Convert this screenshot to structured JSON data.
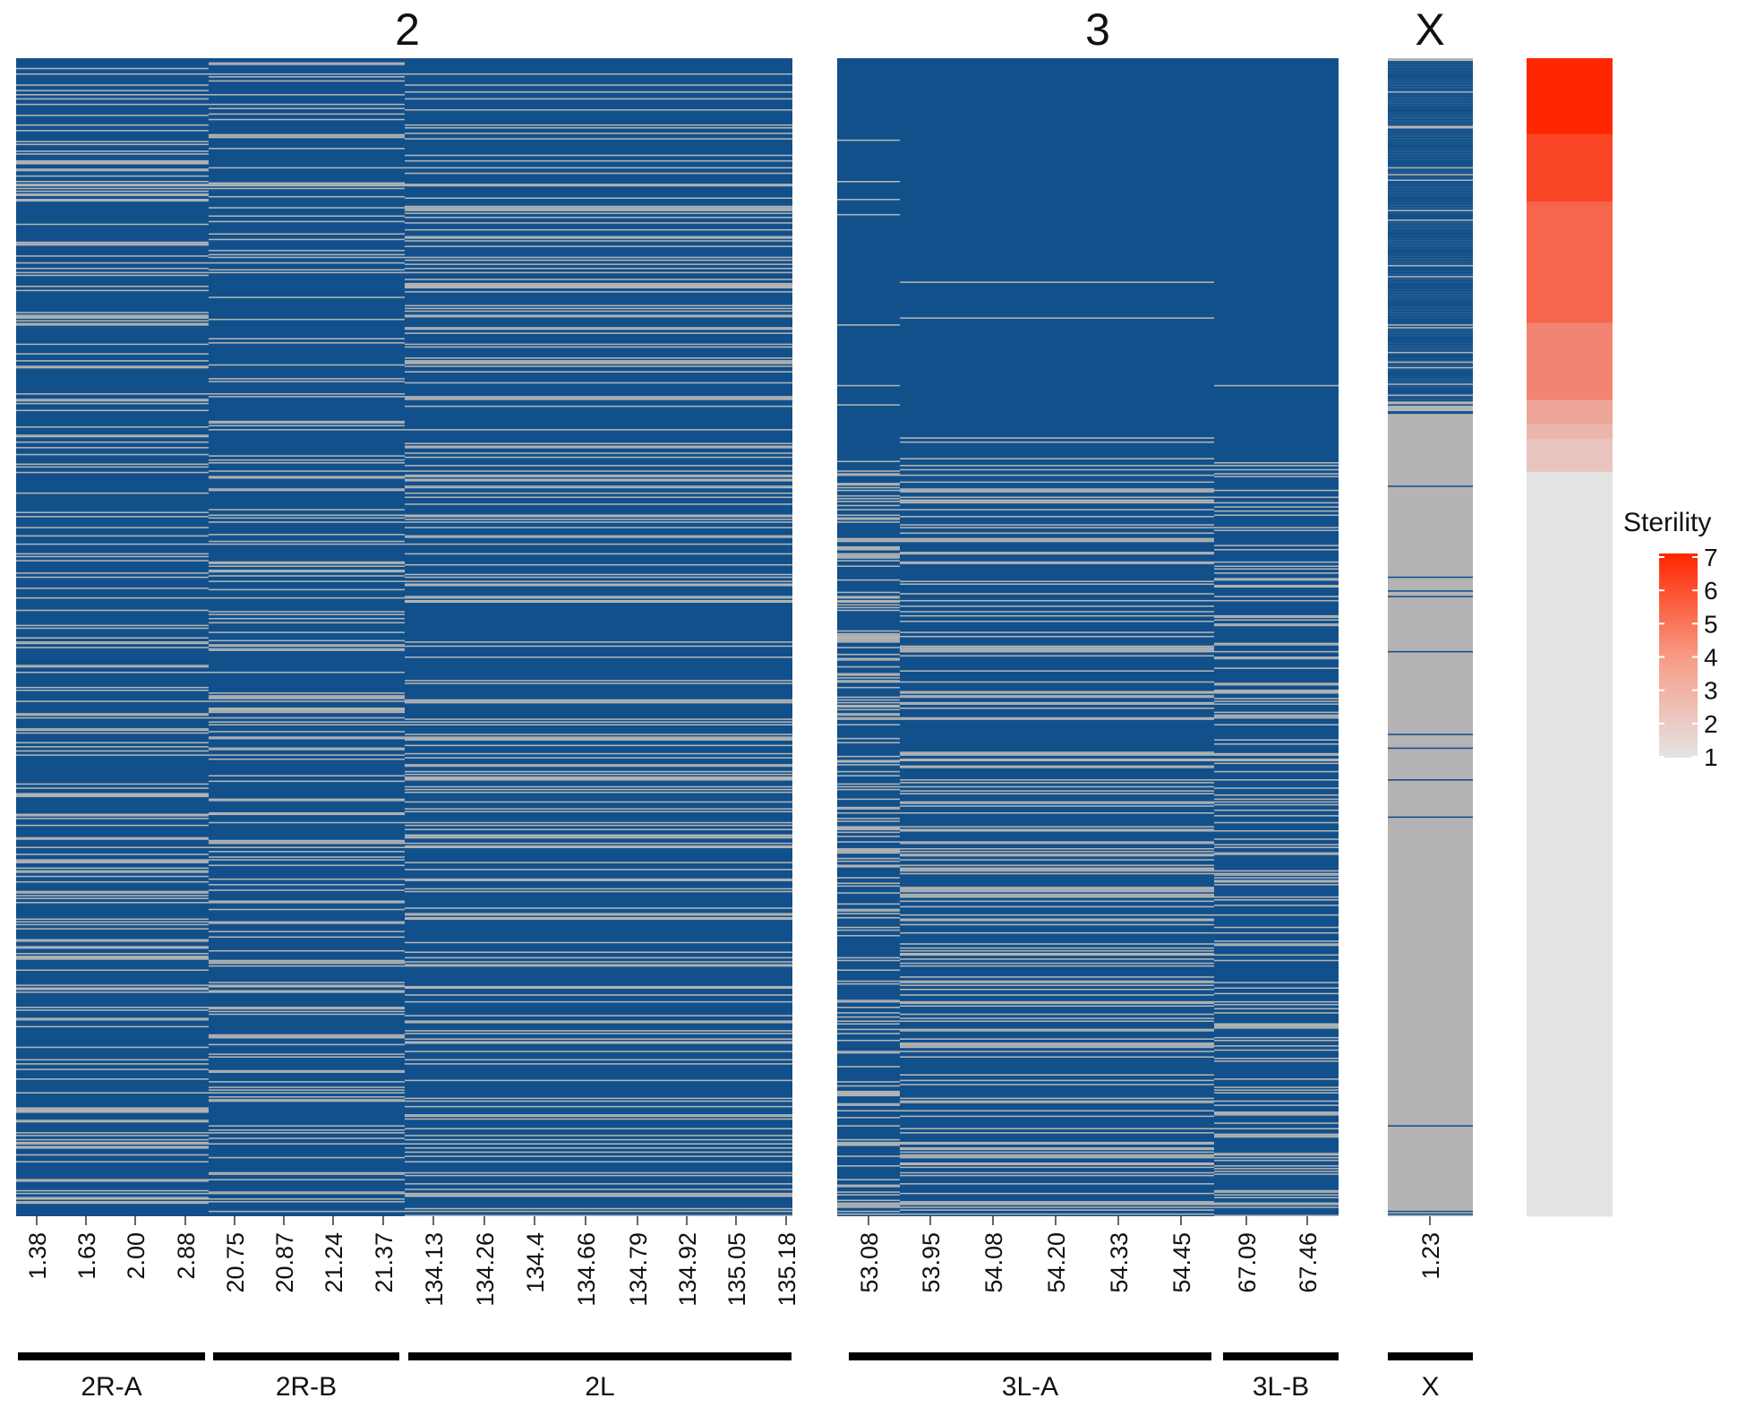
{
  "chart_data": {
    "type": "heatmap",
    "description_note": "Genotype heatmap of individuals (rows) by marker position (columns) grouped by chromosome, with sterility score strip",
    "colors": {
      "genotype_a": "#11508B",
      "genotype_b": "#B4B4B4",
      "bar": "#000000"
    },
    "panels": [
      {
        "title": "2",
        "ticks": [
          "1.38",
          "1.63",
          "2.00",
          "2.88",
          "20.75",
          "20.87",
          "21.24",
          "21.37",
          "134.13",
          "134.26",
          "134.4",
          "134.66",
          "134.79",
          "134.92",
          "135.05",
          "135.18"
        ]
      },
      {
        "title": "3",
        "ticks": [
          "53.08",
          "53.95",
          "54.08",
          "54.20",
          "54.33",
          "54.45",
          "67.09",
          "67.46"
        ]
      },
      {
        "title": "X",
        "ticks": [
          "1.23"
        ]
      }
    ],
    "regions": [
      {
        "label": "2R-A",
        "panel": "2"
      },
      {
        "label": "2R-B",
        "panel": "2"
      },
      {
        "label": "2L",
        "panel": "2"
      },
      {
        "label": "3L-A",
        "panel": "3"
      },
      {
        "label": "3L-B",
        "panel": "3"
      },
      {
        "label": "X",
        "panel": "X"
      }
    ],
    "sterility": {
      "legend_title": "Sterility",
      "min": 1,
      "max": 7,
      "legend_ticks": [
        "7",
        "6",
        "5",
        "4",
        "3",
        "2",
        "1"
      ],
      "low_color": "#E4E4E4",
      "high_color": "#FF2600",
      "row_counts": [
        {
          "value": 7,
          "rows": 55
        },
        {
          "value": 6,
          "rows": 49
        },
        {
          "value": 5,
          "rows": 88
        },
        {
          "value": 4,
          "rows": 56
        },
        {
          "value": 3,
          "rows": 17
        },
        {
          "value": 2.5,
          "rows": 11
        },
        {
          "value": 2,
          "rows": 24
        },
        {
          "value": 1,
          "rows": 540
        }
      ]
    }
  }
}
